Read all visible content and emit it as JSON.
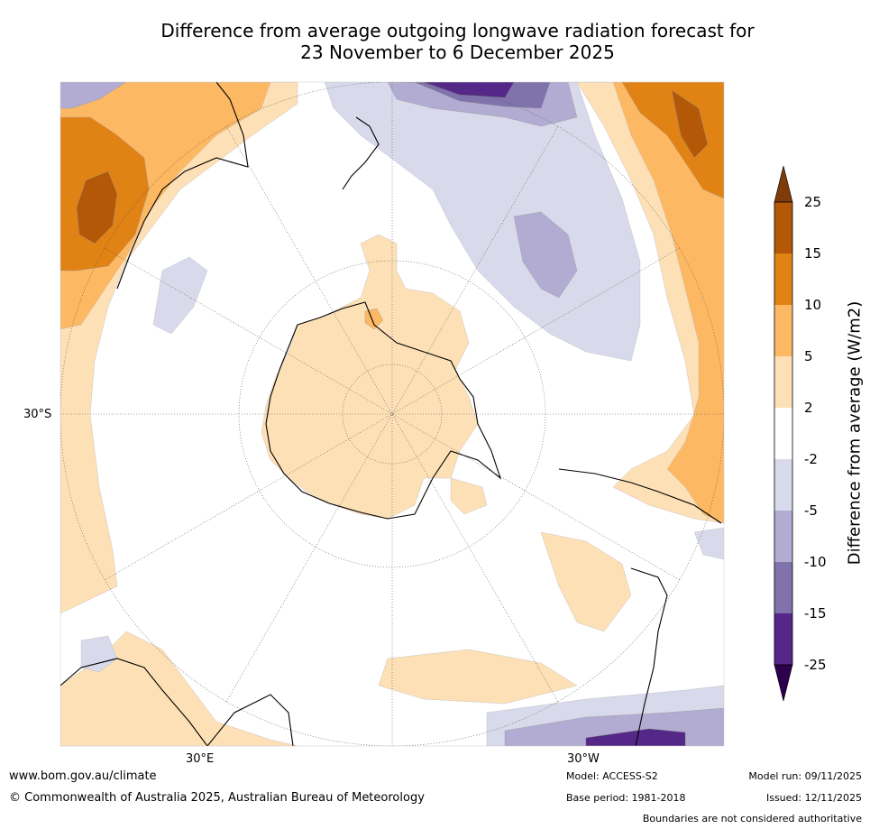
{
  "title": {
    "line1": "Difference from average outgoing longwave radiation forecast for",
    "line2": "23 November to 6 December 2025"
  },
  "axis": {
    "lat_label": "30°S",
    "lon_east_label": "30°E",
    "lon_west_label": "30°W"
  },
  "colorbar": {
    "title": "Difference from average (W/m2)",
    "ticks": [
      "25",
      "15",
      "10",
      "5",
      "2",
      "-2",
      "-5",
      "-10",
      "-15",
      "-25"
    ],
    "colors": {
      "above_25": "#7f3b08",
      "15_25": "#b35806",
      "10_15": "#e08214",
      "5_10": "#fdb863",
      "2_5": "#fee0b6",
      "neutral": "#ffffff",
      "m2_m5": "#d8daeb",
      "m5_m10": "#b2abd2",
      "m10_m15": "#8073ac",
      "m15_m25": "#542788",
      "below_m25": "#2d004b"
    }
  },
  "footer": {
    "website": "www.bom.gov.au/climate",
    "copyright": "© Commonwealth of Australia 2025, Australian Bureau of Meteorology",
    "model": "Model: ACCESS-S2",
    "base_period": "Base period: 1981-2018",
    "model_run": "Model run: 09/11/2025",
    "issued": "Issued: 12/11/2025",
    "disclaimer": "Boundaries are not considered authoritative"
  }
}
